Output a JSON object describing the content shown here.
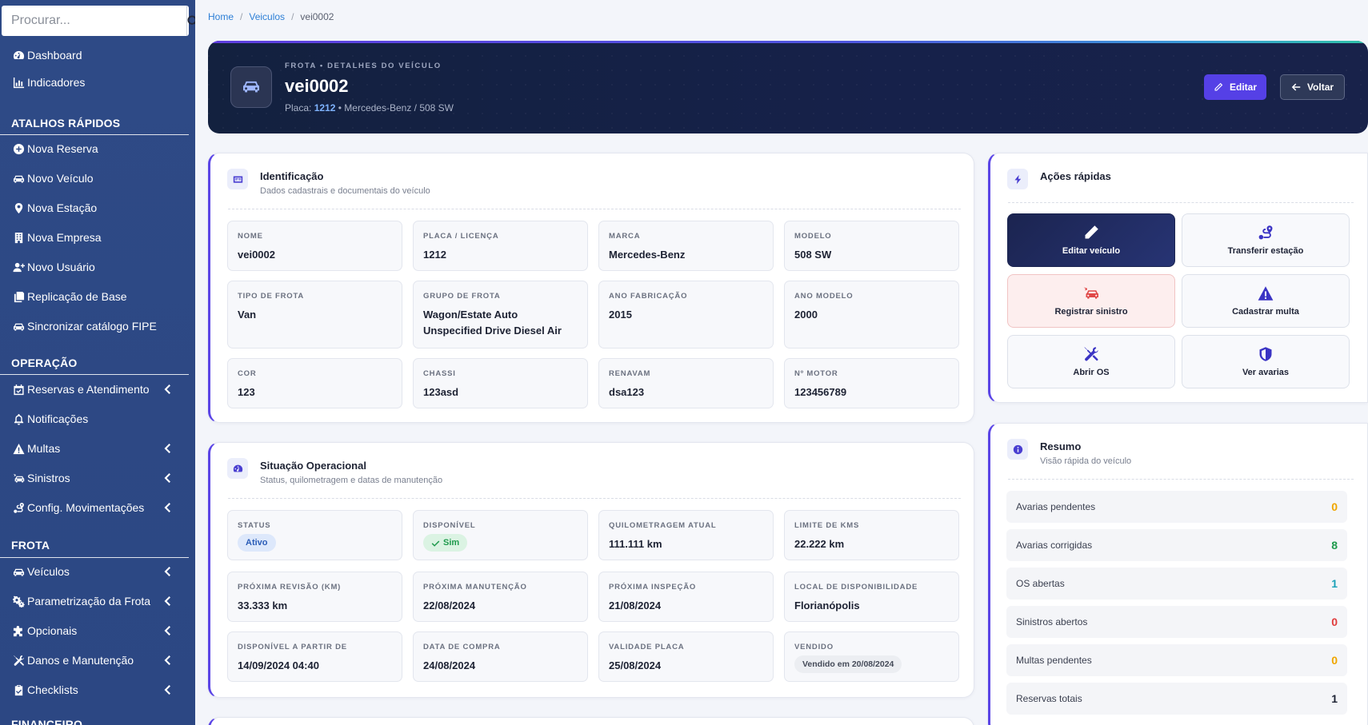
{
  "search": {
    "placeholder": "Procurar..."
  },
  "sidebar": {
    "top_items": [
      {
        "label": "Dashboard",
        "icon": "tachometer-icon"
      },
      {
        "label": "Indicadores",
        "icon": "chart-bar-icon"
      }
    ],
    "sections": [
      {
        "title": "ATALHOS RÁPIDOS",
        "items": [
          {
            "label": "Nova Reserva"
          },
          {
            "label": "Novo Veículo"
          },
          {
            "label": "Nova Estação"
          },
          {
            "label": "Nova Empresa"
          },
          {
            "label": "Novo Usuário"
          },
          {
            "label": "Replicação de Base"
          },
          {
            "label": "Sincronizar catálogo FIPE"
          }
        ]
      },
      {
        "title": "OPERAÇÃO",
        "items": [
          {
            "label": "Reservas e Atendimento"
          },
          {
            "label": "Notificações"
          },
          {
            "label": "Multas"
          },
          {
            "label": "Sinistros"
          },
          {
            "label": "Config. Movimentações"
          }
        ]
      },
      {
        "title": "FROTA",
        "items": [
          {
            "label": "Veículos"
          },
          {
            "label": "Parametrização da Frota"
          },
          {
            "label": "Opcionais"
          },
          {
            "label": "Danos e Manutenção"
          },
          {
            "label": "Checklists"
          }
        ]
      },
      {
        "title": "FINANCEIRO"
      }
    ]
  },
  "breadcrumb": {
    "home": "Home",
    "section": "Veiculos",
    "current": "vei0002"
  },
  "header": {
    "kicker": "FROTA • DETALHES DO VEÍCULO",
    "title": "vei0002",
    "plate_label": "Placa:",
    "plate": "1212",
    "model_line": "• Mercedes-Benz / 508 SW",
    "edit_label": "Editar",
    "back_label": "Voltar"
  },
  "identificacao": {
    "title": "Identificação",
    "subtitle": "Dados cadastrais e documentais do veículo",
    "fields": [
      {
        "label": "NOME",
        "value": "vei0002"
      },
      {
        "label": "PLACA / LICENÇA",
        "value": "1212"
      },
      {
        "label": "MARCA",
        "value": "Mercedes-Benz"
      },
      {
        "label": "MODELO",
        "value": "508 SW"
      },
      {
        "label": "TIPO DE FROTA",
        "value": "Van"
      },
      {
        "label": "GRUPO DE FROTA",
        "value": "Wagon/Estate Auto Unspecified Drive Diesel Air"
      },
      {
        "label": "ANO FABRICAÇÃO",
        "value": "2015"
      },
      {
        "label": "ANO MODELO",
        "value": "2000"
      },
      {
        "label": "COR",
        "value": "123"
      },
      {
        "label": "CHASSI",
        "value": "123asd"
      },
      {
        "label": "RENAVAM",
        "value": "dsa123"
      },
      {
        "label": "Nº MOTOR",
        "value": "123456789"
      }
    ]
  },
  "situacao": {
    "title": "Situação Operacional",
    "subtitle": "Status, quilometragem e datas de manutenção",
    "fields": [
      {
        "label": "STATUS",
        "value": "Ativo"
      },
      {
        "label": "DISPONÍVEL",
        "value": "Sim"
      },
      {
        "label": "QUILOMETRAGEM ATUAL",
        "value": "111.111 km"
      },
      {
        "label": "LIMITE DE KMS",
        "value": "22.222 km"
      },
      {
        "label": "PRÓXIMA REVISÃO (KM)",
        "value": "33.333 km"
      },
      {
        "label": "PRÓXIMA MANUTENÇÃO",
        "value": "22/08/2024"
      },
      {
        "label": "PRÓXIMA INSPEÇÃO",
        "value": "21/08/2024"
      },
      {
        "label": "LOCAL DE DISPONIBILIDADE",
        "value": "Florianópolis"
      },
      {
        "label": "DISPONÍVEL A PARTIR DE",
        "value": "14/09/2024 04:40"
      },
      {
        "label": "DATA DE COMPRA",
        "value": "24/08/2024"
      },
      {
        "label": "VALIDADE PLACA",
        "value": "25/08/2024"
      },
      {
        "label": "VENDIDO",
        "value": "Vendido em 20/08/2024"
      }
    ]
  },
  "acoes": {
    "title": "Ações rápidas",
    "items": [
      {
        "label": "Editar veículo",
        "icon": "pencil-icon"
      },
      {
        "label": "Transferir estação",
        "icon": "route-icon"
      },
      {
        "label": "Registrar sinistro",
        "icon": "car-crash-icon"
      },
      {
        "label": "Cadastrar multa",
        "icon": "warning-triangle-icon"
      },
      {
        "label": "Abrir OS",
        "icon": "tools-icon"
      },
      {
        "label": "Ver avarias",
        "icon": "shield-icon"
      }
    ]
  },
  "resumo": {
    "title": "Resumo",
    "subtitle": "Visão rápida do veículo",
    "rows": [
      {
        "label": "Avarias pendentes",
        "value": "0",
        "color": "#f0a500"
      },
      {
        "label": "Avarias corrigidas",
        "value": "8",
        "color": "#1f9a4d"
      },
      {
        "label": "OS abertas",
        "value": "1",
        "color": "#1aa1b8"
      },
      {
        "label": "Sinistros abertos",
        "value": "0",
        "color": "#e03b3b"
      },
      {
        "label": "Multas pendentes",
        "value": "0",
        "color": "#f0a500"
      },
      {
        "label": "Reservas totais",
        "value": "1",
        "color": "#1d2233"
      }
    ]
  },
  "colors": {
    "accent": "#5540e6",
    "sidebar": "#2e4a86",
    "hero": "#16214a"
  }
}
